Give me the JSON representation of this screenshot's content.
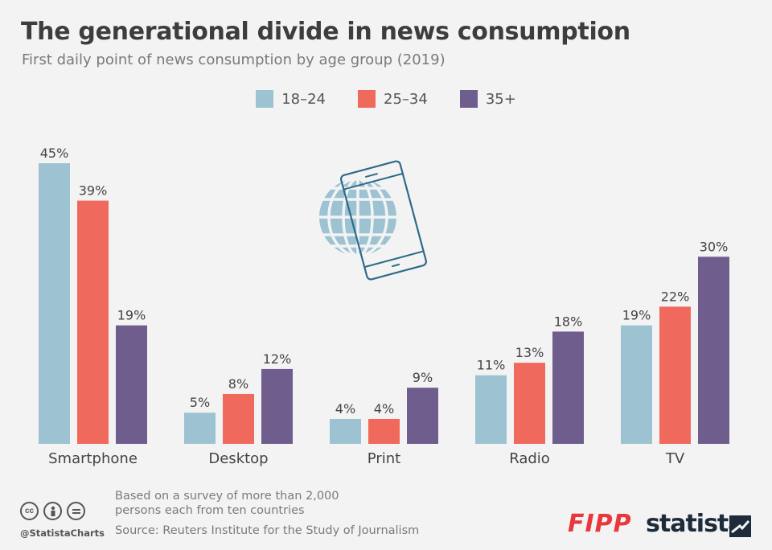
{
  "header": {
    "title": "The generational divide in news consumption",
    "subtitle": "First daily point of news consumption by age group (2019)"
  },
  "chart_data": {
    "type": "bar",
    "title": "The generational divide in news consumption",
    "subtitle": "First daily point of news consumption by age group (2019)",
    "categories": [
      "Smartphone",
      "Desktop",
      "Print",
      "Radio",
      "TV"
    ],
    "series": [
      {
        "name": "18–24",
        "color": "#9dc3d2",
        "values": [
          45,
          5,
          4,
          11,
          19
        ]
      },
      {
        "name": "25–34",
        "color": "#f0695d",
        "values": [
          39,
          8,
          4,
          13,
          22
        ]
      },
      {
        "name": "35+",
        "color": "#6e5d8d",
        "values": [
          19,
          12,
          9,
          18,
          30
        ]
      }
    ],
    "value_suffix": "%",
    "ylim": [
      0,
      45
    ],
    "grid": false,
    "legend_position": "top-center",
    "xlabel": "",
    "ylabel": ""
  },
  "footer": {
    "note": "Based on a survey of more than 2,000 persons each from ten countries",
    "source": "Source: Reuters Institute for the Study of Journalism",
    "handle": "@StatistaCharts",
    "cc_icons": [
      "cc-icon",
      "by-icon",
      "nd-icon"
    ],
    "fipp_logo": "FIPP",
    "statista_logo": "statista"
  }
}
